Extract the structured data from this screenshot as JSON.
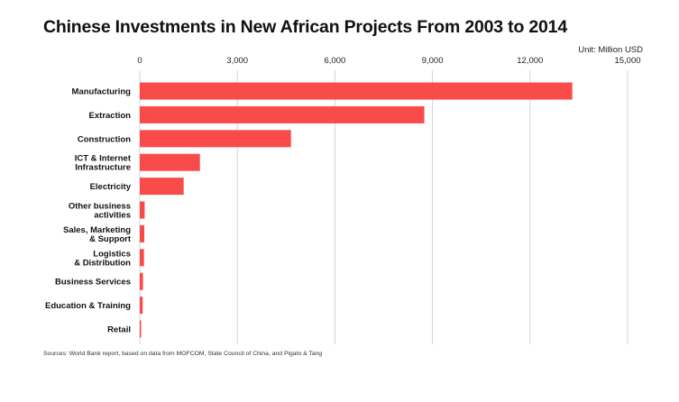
{
  "chart_data": {
    "type": "bar",
    "orientation": "horizontal",
    "title": "Chinese Investments in New African Projects From 2003 to 2014",
    "unit_label": "Unit: Million USD",
    "categories": [
      [
        "Manufacturing"
      ],
      [
        "Extraction"
      ],
      [
        "Construction"
      ],
      [
        "ICT & Internet",
        "Infrastructure"
      ],
      [
        "Electricity"
      ],
      [
        "Other business",
        "activities"
      ],
      [
        "Sales, Marketing",
        "& Support"
      ],
      [
        "Logistics",
        "& Distribution"
      ],
      [
        "Business Services"
      ],
      [
        "Education & Training"
      ],
      [
        "Retail"
      ]
    ],
    "values": [
      13300,
      8750,
      4650,
      1850,
      1350,
      150,
      140,
      130,
      100,
      90,
      40
    ],
    "xlim": [
      0,
      15000
    ],
    "xticks": [
      0,
      3000,
      6000,
      9000,
      12000,
      15000
    ],
    "xtick_labels": [
      "0",
      "3,000",
      "6,000",
      "9,000",
      "12,000",
      "15,000"
    ],
    "bar_color": "#fa4b4b",
    "grid": true,
    "axis_position": "top",
    "source": "Sources: World Bank report, based on data from MOFCOM, State Council of China, and Pigato & Tang"
  }
}
